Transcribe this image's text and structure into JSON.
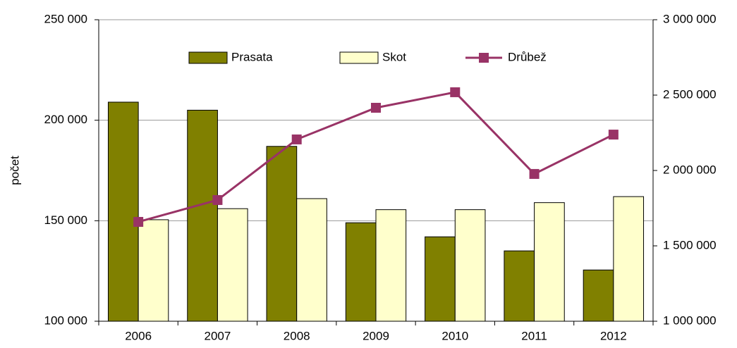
{
  "chart_data": {
    "type": "bar_line",
    "y_label": "počet",
    "categories": [
      "2006",
      "2007",
      "2008",
      "2009",
      "2010",
      "2011",
      "2012"
    ],
    "series": [
      {
        "name": "Prasata",
        "color": "#808000",
        "type": "bar",
        "values": [
          209000,
          205000,
          187000,
          149000,
          142000,
          135000,
          125500
        ]
      },
      {
        "name": "Skot",
        "color": "#ffffcc",
        "type": "bar",
        "values": [
          150500,
          156000,
          161000,
          155500,
          155500,
          159000,
          162000
        ]
      },
      {
        "name": "Drůbež",
        "color": "#993366",
        "type": "line",
        "axis": "y2",
        "values": [
          1659000,
          1804000,
          2206000,
          2416000,
          2519000,
          1977000,
          2238000
        ]
      }
    ],
    "ylim": [
      100000,
      250000
    ],
    "yticks": [
      {
        "value": 100000,
        "label": "100 000"
      },
      {
        "value": 150000,
        "label": "150 000"
      },
      {
        "value": 200000,
        "label": "200 000"
      },
      {
        "value": 250000,
        "label": "250 000"
      }
    ],
    "y2lim": [
      1000000,
      3000000
    ],
    "y2ticks": [
      {
        "value": 1000000,
        "label": "1 000 000"
      },
      {
        "value": 1500000,
        "label": "1 500 000"
      },
      {
        "value": 2000000,
        "label": "2 000 000"
      },
      {
        "value": 2500000,
        "label": "2 500 000"
      },
      {
        "value": 3000000,
        "label": "3 000 000"
      }
    ],
    "grid": true,
    "legend": "top"
  }
}
